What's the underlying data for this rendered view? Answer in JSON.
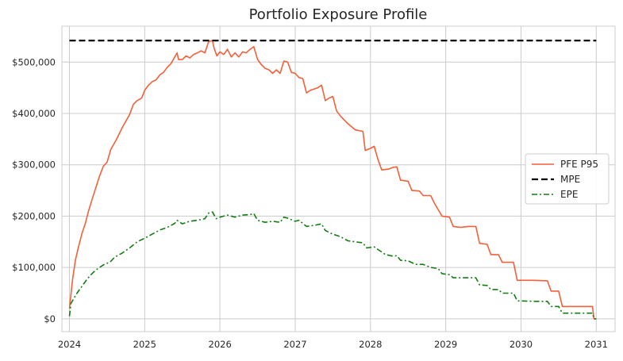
{
  "chart_data": {
    "type": "line",
    "title": "Portfolio Exposure Profile",
    "xlabel": "",
    "ylabel": "",
    "xlim": [
      2023.9,
      2031.25
    ],
    "ylim": [
      -25000,
      570000
    ],
    "grid": true,
    "legend_position": "center-right",
    "x_ticks": [
      {
        "value": 2024,
        "label": "2024"
      },
      {
        "value": 2025,
        "label": "2025"
      },
      {
        "value": 2026,
        "label": "2026"
      },
      {
        "value": 2027,
        "label": "2027"
      },
      {
        "value": 2028,
        "label": "2028"
      },
      {
        "value": 2029,
        "label": "2029"
      },
      {
        "value": 2030,
        "label": "2030"
      },
      {
        "value": 2031,
        "label": "2031"
      }
    ],
    "y_ticks": [
      {
        "value": 0,
        "label": "$0"
      },
      {
        "value": 100000,
        "label": "$100,000"
      },
      {
        "value": 200000,
        "label": "$200,000"
      },
      {
        "value": 300000,
        "label": "$300,000"
      },
      {
        "value": 400000,
        "label": "$400,000"
      },
      {
        "value": 500000,
        "label": "$500,000"
      }
    ],
    "series": [
      {
        "name": "PFE P95",
        "color": "#f4603a",
        "style": "solid",
        "points": [
          [
            2024.0,
            20000
          ],
          [
            2024.04,
            75000
          ],
          [
            2024.08,
            115000
          ],
          [
            2024.12,
            140000
          ],
          [
            2024.17,
            168000
          ],
          [
            2024.21,
            185000
          ],
          [
            2024.25,
            208000
          ],
          [
            2024.3,
            232000
          ],
          [
            2024.35,
            255000
          ],
          [
            2024.4,
            278000
          ],
          [
            2024.45,
            297000
          ],
          [
            2024.5,
            305000
          ],
          [
            2024.55,
            330000
          ],
          [
            2024.62,
            348000
          ],
          [
            2024.7,
            372000
          ],
          [
            2024.75,
            385000
          ],
          [
            2024.8,
            398000
          ],
          [
            2024.85,
            418000
          ],
          [
            2024.9,
            425000
          ],
          [
            2024.96,
            430000
          ],
          [
            2025.0,
            445000
          ],
          [
            2025.05,
            455000
          ],
          [
            2025.1,
            462000
          ],
          [
            2025.15,
            465000
          ],
          [
            2025.2,
            475000
          ],
          [
            2025.25,
            480000
          ],
          [
            2025.3,
            490000
          ],
          [
            2025.35,
            497000
          ],
          [
            2025.4,
            510000
          ],
          [
            2025.43,
            518000
          ],
          [
            2025.45,
            505000
          ],
          [
            2025.5,
            505000
          ],
          [
            2025.55,
            512000
          ],
          [
            2025.6,
            508000
          ],
          [
            2025.65,
            515000
          ],
          [
            2025.7,
            518000
          ],
          [
            2025.75,
            522000
          ],
          [
            2025.8,
            518000
          ],
          [
            2025.85,
            540000
          ],
          [
            2025.9,
            542000
          ],
          [
            2025.92,
            528000
          ],
          [
            2025.96,
            512000
          ],
          [
            2026.0,
            520000
          ],
          [
            2026.05,
            515000
          ],
          [
            2026.1,
            525000
          ],
          [
            2026.15,
            510000
          ],
          [
            2026.2,
            518000
          ],
          [
            2026.25,
            510000
          ],
          [
            2026.3,
            520000
          ],
          [
            2026.35,
            518000
          ],
          [
            2026.4,
            525000
          ],
          [
            2026.45,
            530000
          ],
          [
            2026.5,
            505000
          ],
          [
            2026.55,
            495000
          ],
          [
            2026.6,
            488000
          ],
          [
            2026.65,
            485000
          ],
          [
            2026.7,
            478000
          ],
          [
            2026.75,
            485000
          ],
          [
            2026.8,
            478000
          ],
          [
            2026.85,
            502000
          ],
          [
            2026.9,
            500000
          ],
          [
            2026.95,
            480000
          ],
          [
            2027.0,
            478000
          ],
          [
            2027.05,
            470000
          ],
          [
            2027.1,
            468000
          ],
          [
            2027.15,
            440000
          ],
          [
            2027.2,
            445000
          ],
          [
            2027.3,
            450000
          ],
          [
            2027.35,
            455000
          ],
          [
            2027.4,
            425000
          ],
          [
            2027.45,
            430000
          ],
          [
            2027.5,
            433000
          ],
          [
            2027.55,
            405000
          ],
          [
            2027.6,
            395000
          ],
          [
            2027.7,
            380000
          ],
          [
            2027.8,
            368000
          ],
          [
            2027.9,
            365000
          ],
          [
            2027.93,
            328000
          ],
          [
            2028.0,
            332000
          ],
          [
            2028.05,
            336000
          ],
          [
            2028.1,
            310000
          ],
          [
            2028.15,
            290000
          ],
          [
            2028.25,
            292000
          ],
          [
            2028.3,
            295000
          ],
          [
            2028.35,
            296000
          ],
          [
            2028.4,
            270000
          ],
          [
            2028.5,
            268000
          ],
          [
            2028.55,
            250000
          ],
          [
            2028.65,
            249000
          ],
          [
            2028.7,
            240000
          ],
          [
            2028.8,
            240000
          ],
          [
            2028.85,
            225000
          ],
          [
            2028.95,
            200000
          ],
          [
            2029.05,
            198000
          ],
          [
            2029.1,
            180000
          ],
          [
            2029.2,
            178000
          ],
          [
            2029.3,
            180000
          ],
          [
            2029.4,
            180000
          ],
          [
            2029.45,
            147000
          ],
          [
            2029.55,
            145000
          ],
          [
            2029.6,
            125000
          ],
          [
            2029.7,
            125000
          ],
          [
            2029.75,
            110000
          ],
          [
            2029.9,
            110000
          ],
          [
            2029.95,
            75000
          ],
          [
            2030.15,
            75000
          ],
          [
            2030.35,
            74000
          ],
          [
            2030.4,
            54000
          ],
          [
            2030.5,
            54000
          ],
          [
            2030.55,
            24000
          ],
          [
            2030.95,
            24000
          ],
          [
            2030.97,
            0
          ],
          [
            2031.0,
            0
          ]
        ]
      },
      {
        "name": "MPE",
        "color": "#000000",
        "style": "dashed",
        "points": [
          [
            2024.0,
            542000
          ],
          [
            2031.0,
            542000
          ]
        ]
      },
      {
        "name": "EPE",
        "color": "#137d13",
        "style": "dashdot",
        "points": [
          [
            2024.0,
            5000
          ],
          [
            2024.02,
            30000
          ],
          [
            2024.06,
            40000
          ],
          [
            2024.1,
            50000
          ],
          [
            2024.15,
            60000
          ],
          [
            2024.2,
            70000
          ],
          [
            2024.25,
            80000
          ],
          [
            2024.3,
            88000
          ],
          [
            2024.35,
            95000
          ],
          [
            2024.4,
            100000
          ],
          [
            2024.45,
            105000
          ],
          [
            2024.5,
            108000
          ],
          [
            2024.55,
            112000
          ],
          [
            2024.6,
            120000
          ],
          [
            2024.7,
            128000
          ],
          [
            2024.8,
            138000
          ],
          [
            2024.9,
            150000
          ],
          [
            2025.0,
            157000
          ],
          [
            2025.1,
            165000
          ],
          [
            2025.2,
            173000
          ],
          [
            2025.3,
            178000
          ],
          [
            2025.4,
            186000
          ],
          [
            2025.43,
            192000
          ],
          [
            2025.5,
            185000
          ],
          [
            2025.6,
            190000
          ],
          [
            2025.7,
            192000
          ],
          [
            2025.8,
            195000
          ],
          [
            2025.85,
            206000
          ],
          [
            2025.9,
            208000
          ],
          [
            2025.95,
            195000
          ],
          [
            2026.0,
            198000
          ],
          [
            2026.1,
            202000
          ],
          [
            2026.2,
            198000
          ],
          [
            2026.3,
            202000
          ],
          [
            2026.4,
            203000
          ],
          [
            2026.45,
            205000
          ],
          [
            2026.5,
            192000
          ],
          [
            2026.6,
            188000
          ],
          [
            2026.7,
            190000
          ],
          [
            2026.8,
            188000
          ],
          [
            2026.85,
            198000
          ],
          [
            2026.9,
            196000
          ],
          [
            2027.0,
            190000
          ],
          [
            2027.05,
            192000
          ],
          [
            2027.15,
            180000
          ],
          [
            2027.25,
            182000
          ],
          [
            2027.35,
            185000
          ],
          [
            2027.4,
            172000
          ],
          [
            2027.5,
            165000
          ],
          [
            2027.6,
            160000
          ],
          [
            2027.7,
            152000
          ],
          [
            2027.8,
            150000
          ],
          [
            2027.9,
            148000
          ],
          [
            2027.95,
            138000
          ],
          [
            2028.05,
            140000
          ],
          [
            2028.1,
            135000
          ],
          [
            2028.2,
            125000
          ],
          [
            2028.3,
            122000
          ],
          [
            2028.35,
            123000
          ],
          [
            2028.4,
            114000
          ],
          [
            2028.5,
            113000
          ],
          [
            2028.6,
            106000
          ],
          [
            2028.7,
            106000
          ],
          [
            2028.8,
            100000
          ],
          [
            2028.9,
            98000
          ],
          [
            2028.95,
            88000
          ],
          [
            2029.05,
            86000
          ],
          [
            2029.1,
            80000
          ],
          [
            2029.3,
            80000
          ],
          [
            2029.4,
            80000
          ],
          [
            2029.45,
            66000
          ],
          [
            2029.55,
            65000
          ],
          [
            2029.6,
            57000
          ],
          [
            2029.7,
            57000
          ],
          [
            2029.75,
            50000
          ],
          [
            2029.9,
            50000
          ],
          [
            2029.95,
            35000
          ],
          [
            2030.2,
            34000
          ],
          [
            2030.35,
            34000
          ],
          [
            2030.4,
            24000
          ],
          [
            2030.5,
            24000
          ],
          [
            2030.55,
            11000
          ],
          [
            2030.95,
            11000
          ],
          [
            2030.97,
            0
          ],
          [
            2031.0,
            0
          ]
        ]
      }
    ]
  }
}
